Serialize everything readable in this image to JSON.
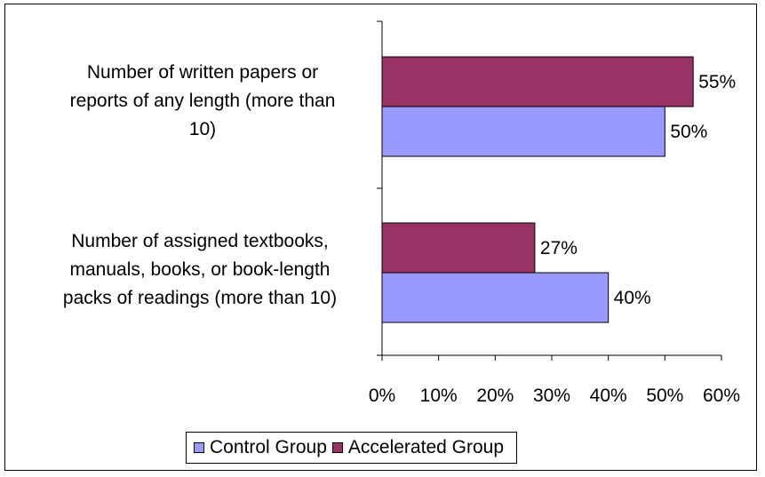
{
  "chart_data": {
    "type": "bar",
    "orientation": "horizontal",
    "categories": [
      "Number of written papers or reports of any length (more than 10)",
      "Number of assigned textbooks, manuals, books, or book-length packs of readings (more than 10)"
    ],
    "category_label_lines": [
      [
        "Number of written papers or",
        "reports of any length (more than",
        "10)"
      ],
      [
        "Number of assigned textbooks,",
        "manuals, books, or book-length",
        "packs of readings (more than 10)"
      ]
    ],
    "series": [
      {
        "name": "Accelerated Group",
        "values": [
          55,
          27
        ],
        "labels": [
          "55%",
          "27%"
        ],
        "color": "#993366"
      },
      {
        "name": "Control Group",
        "values": [
          50,
          40
        ],
        "labels": [
          "50%",
          "40%"
        ],
        "color": "#9999FF"
      }
    ],
    "legend_order": [
      "Control Group",
      "Accelerated Group"
    ],
    "x_ticks": [
      "0%",
      "10%",
      "20%",
      "30%",
      "40%",
      "50%",
      "60%"
    ],
    "xlim": [
      0,
      60
    ],
    "grid": false,
    "legend_position": "bottom"
  }
}
